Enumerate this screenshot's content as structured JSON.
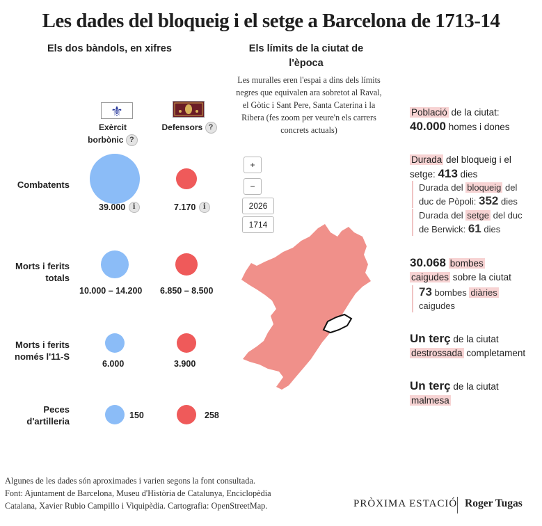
{
  "title": "Les dades del bloqueig i el setge a Barcelona de 1713-14",
  "left_panel": {
    "heading": "Els dos bàndols, en xifres",
    "col_bourbon": {
      "line1": "Exèrcit",
      "line2": "borbònic",
      "help": "?"
    },
    "col_defenders": {
      "label": "Defensors",
      "help": "?"
    }
  },
  "chart_data": {
    "type": "bubble",
    "title": "Els dos bàndols, en xifres",
    "series": [
      {
        "name": "Exèrcit borbònic",
        "color": "#8bbcf7"
      },
      {
        "name": "Defensors",
        "color": "#ef5a5a"
      }
    ],
    "rows": [
      {
        "label": "Combatents",
        "bourbon": 39000,
        "bourbon_label": "39.000",
        "defenders": 7170,
        "defenders_label": "7.170",
        "info": "i"
      },
      {
        "label": "Morts i ferits totals",
        "bourbon": [
          10000,
          14200
        ],
        "bourbon_label": "10.000 – 14.200",
        "defenders": [
          6850,
          8500
        ],
        "defenders_label": "6.850 – 8.500"
      },
      {
        "label": "Morts i ferits només l'11-S",
        "bourbon": 6000,
        "bourbon_label": "6.000",
        "defenders": 3900,
        "defenders_label": "3.900"
      },
      {
        "label": "Peces d'artilleria",
        "bourbon": 150,
        "bourbon_label": "150",
        "defenders": 258,
        "defenders_label": "258"
      }
    ]
  },
  "map_panel": {
    "heading": "Els límits de la ciutat de l'època",
    "description": "Les muralles eren l'espai a dins dels límits negres que equivalen ara sobretot al Raval, el Gòtic i Sant Pere, Santa Caterina i la Ribera (fes zoom per veure'n els carrers concrets actuals)",
    "zoom_in": "+",
    "zoom_out": "−",
    "year_2026": "2026",
    "year_1714": "1714",
    "colors": {
      "land": "#f0908a",
      "walls": "#ffffff"
    }
  },
  "stats": {
    "s1": {
      "hl": "Població",
      "t1": " de la ciutat:",
      "num": "40.000",
      "t2": " homes i dones"
    },
    "s2": {
      "hl": "Durada",
      "t1": " del bloqueig i el setge: ",
      "num": "413",
      "t2": " dies",
      "sub1": {
        "t1": "Durada del ",
        "hl": "bloqueig",
        "t2": " del duc de Pòpoli: ",
        "num": "352",
        "t3": " dies"
      },
      "sub2": {
        "t1": "Durada del ",
        "hl": "setge",
        "t2": " del duc de Berwick: ",
        "num": "61",
        "t3": " dies"
      }
    },
    "s3": {
      "num": "30.068",
      "hl1": "bombes",
      "hl2": "caigudes",
      "t1": " sobre la ciutat",
      "sub": {
        "num": "73",
        "t1": " bombes ",
        "hl": "diàries",
        "t2": "caigudes"
      }
    },
    "s4": {
      "big": "Un terç",
      "t1": " de la ciutat",
      "hl": "destrossada",
      "t2": " completament"
    },
    "s5": {
      "big": "Un terç",
      "t1": " de la ciutat",
      "hl": "malmesa"
    }
  },
  "footer": {
    "line1": "Algunes de les dades són aproximades i varien segons la font consultada.",
    "line2": "Font: Ajuntament de Barcelona, Museu d'Història de Catalunya, Enciclopèdia",
    "line3": "Catalana, Xavier Rubio Campillo i Viquipèdia. Cartografia: OpenStreetMap."
  },
  "brand": "PRÒXIMA ESTACIÓ",
  "author": "Roger Tugas"
}
